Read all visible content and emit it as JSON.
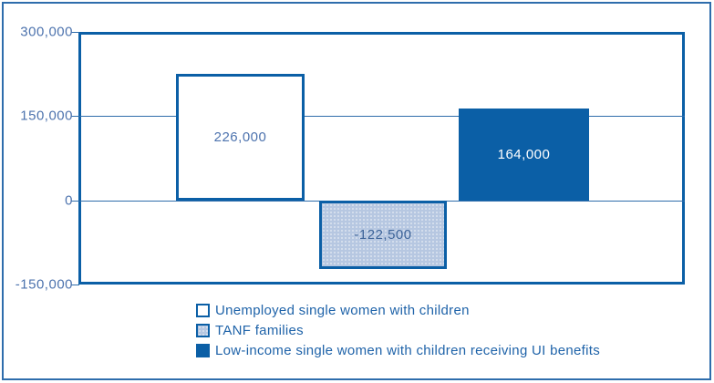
{
  "chart_data": {
    "type": "bar",
    "title": "",
    "xlabel": "",
    "ylabel": "",
    "ylim": [
      -150000,
      300000
    ],
    "grid": "horizontal",
    "legend_position": "bottom",
    "y_ticks": [
      {
        "value": 300000,
        "label": "300,000"
      },
      {
        "value": 150000,
        "label": "150,000"
      },
      {
        "value": 0,
        "label": "0"
      },
      {
        "value": -150000,
        "label": "-150,000"
      }
    ],
    "categories": [
      "Unemployed single women with children",
      "TANF families",
      "Low-income single women with children receiving UI benefits"
    ],
    "values": [
      226000,
      -122500,
      164000
    ],
    "value_labels": [
      "226,000",
      "-122,500",
      "164,000"
    ],
    "bar_styles": [
      {
        "fill": "#ffffff",
        "pattern": "none",
        "label_color": "#4d73ae"
      },
      {
        "fill": "#b6c7e1",
        "pattern": "dots",
        "label_color": "#3d6499"
      },
      {
        "fill": "#0b5fa6",
        "pattern": "none",
        "label_color": "#ffffff"
      }
    ],
    "colors": {
      "bar_border": "#0b5fa6",
      "grid_line": "#2f6dab",
      "tick_text": "#4d73ae",
      "legend_text": "#1f63a9",
      "outer_frame": "#2e6dac",
      "background": "#ffffff"
    }
  },
  "legend": {
    "items": [
      {
        "label": "Unemployed single women with children",
        "swatch": "outline"
      },
      {
        "label": "TANF families",
        "swatch": "light-dots"
      },
      {
        "label": "Low-income single women with children receiving UI benefits",
        "swatch": "solid"
      }
    ]
  }
}
